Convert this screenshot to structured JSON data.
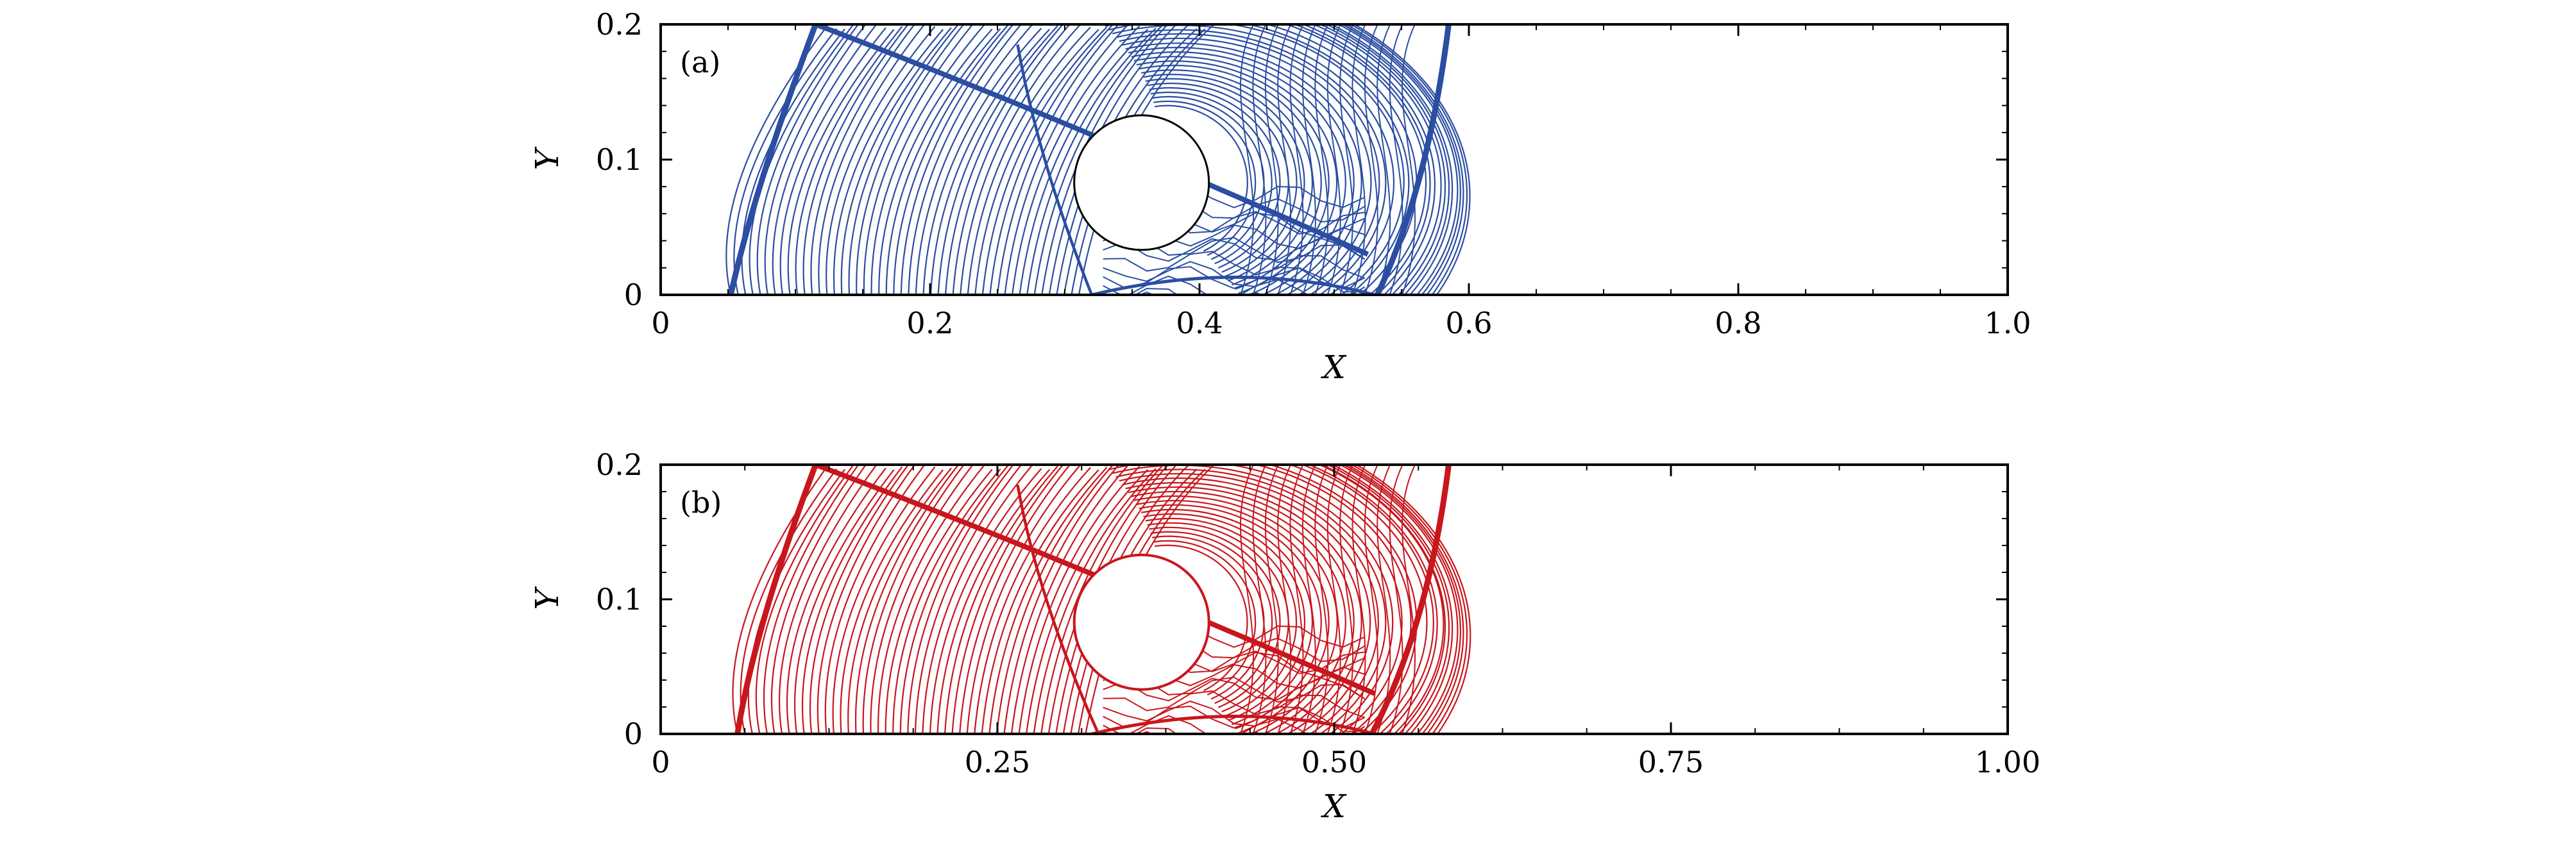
{
  "colors": {
    "panel_a": "#2b4ea2",
    "panel_b": "#c8161d",
    "axes": "#000000",
    "background": "#ffffff"
  },
  "chart_data": [
    {
      "type": "contour",
      "panel_label": "(a)",
      "xlabel": "X",
      "ylabel": "Y",
      "xlim": [
        0,
        1.0
      ],
      "ylim": [
        0,
        0.2
      ],
      "xticks": [
        0,
        0.2,
        0.4,
        0.6,
        0.8,
        1.0
      ],
      "xtick_labels": [
        "0",
        "0.2",
        "0.4",
        "0.6",
        "0.8",
        "1.0"
      ],
      "yticks": [
        0,
        0.1,
        0.2
      ],
      "ytick_labels": [
        "0",
        "0.1",
        "0.2"
      ],
      "color": "#2b4ea2",
      "cylinder": {
        "center_x": 0.357,
        "center_y": 0.083,
        "radius": 0.05
      },
      "shocks": {
        "bow_shock": [
          [
            0.052,
            0.0
          ],
          [
            0.07,
            0.08
          ],
          [
            0.115,
            0.2
          ]
        ],
        "reflected_shock": [
          [
            0.115,
            0.2
          ],
          [
            0.3,
            0.13
          ],
          [
            0.525,
            0.03
          ]
        ],
        "outer_shock": [
          [
            0.585,
            0.2
          ],
          [
            0.57,
            0.08
          ],
          [
            0.532,
            0.0
          ]
        ],
        "secondary_shock": [
          [
            0.265,
            0.185
          ],
          [
            0.28,
            0.1
          ],
          [
            0.32,
            0.0
          ]
        ]
      }
    },
    {
      "type": "contour",
      "panel_label": "(b)",
      "xlabel": "X",
      "ylabel": "Y",
      "xlim": [
        0,
        1.0
      ],
      "ylim": [
        0,
        0.2
      ],
      "xticks": [
        0,
        0.25,
        0.5,
        0.75,
        1.0
      ],
      "xtick_labels": [
        "0",
        "0.25",
        "0.50",
        "0.75",
        "1.00"
      ],
      "yticks": [
        0,
        0.1,
        0.2
      ],
      "ytick_labels": [
        "0",
        "0.1",
        "0.2"
      ],
      "color": "#c8161d",
      "cylinder": {
        "center_x": 0.357,
        "center_y": 0.083,
        "radius": 0.05
      },
      "shocks": {
        "bow_shock": [
          [
            0.057,
            0.0
          ],
          [
            0.07,
            0.08
          ],
          [
            0.115,
            0.2
          ]
        ],
        "reflected_shock": [
          [
            0.115,
            0.2
          ],
          [
            0.3,
            0.13
          ],
          [
            0.53,
            0.03
          ]
        ],
        "outer_shock": [
          [
            0.585,
            0.2
          ],
          [
            0.57,
            0.08
          ],
          [
            0.528,
            0.0
          ]
        ],
        "secondary_shock": [
          [
            0.265,
            0.185
          ],
          [
            0.28,
            0.1
          ],
          [
            0.325,
            0.0
          ]
        ]
      }
    }
  ]
}
